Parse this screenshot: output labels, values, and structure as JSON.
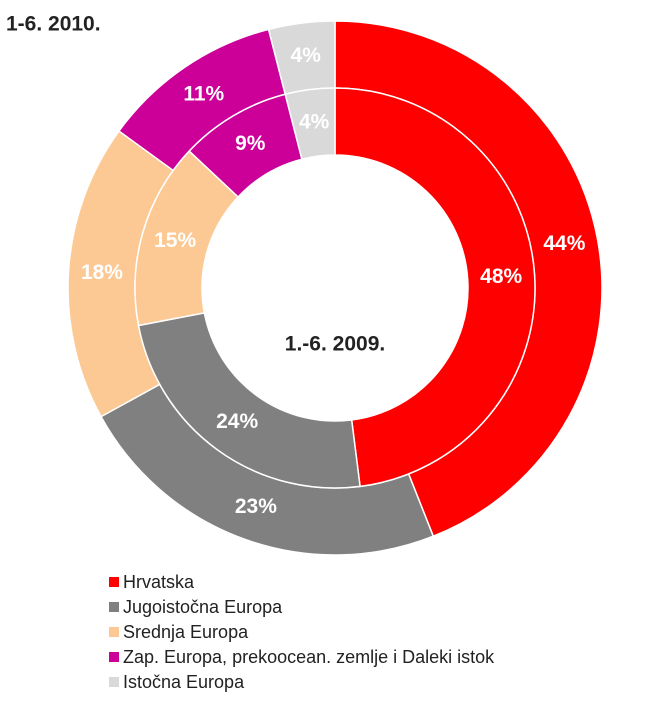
{
  "chart_data": {
    "type": "donut",
    "categories": [
      "Hrvatska",
      "Jugoistočna Europa",
      "Srednja Europa",
      "Zap. Europa, prekoocean. zemlje i Daleki istok",
      "Istočna Europa"
    ],
    "colors": [
      "#ff0000",
      "#808080",
      "#fcc994",
      "#cc0099",
      "#d9d9d9"
    ],
    "series": [
      {
        "name": "1-6. 2010.",
        "values": [
          44,
          23,
          18,
          11,
          4
        ],
        "value_labels": [
          "44%",
          "23%",
          "18%",
          "11%",
          "4%"
        ]
      },
      {
        "name": "1.-6. 2009.",
        "values": [
          48,
          24,
          15,
          9,
          4
        ],
        "value_labels": [
          "48%",
          "24%",
          "15%",
          "9%",
          "4%"
        ]
      }
    ],
    "legend": "bottom"
  }
}
